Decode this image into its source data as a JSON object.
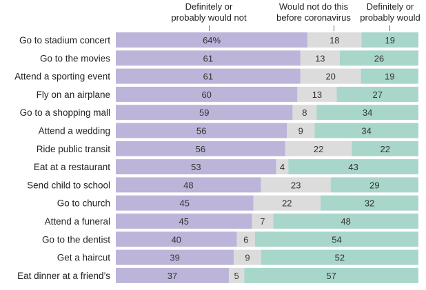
{
  "legend": {
    "would_not": "Definitely or probably would not",
    "would_not_line1": "Definitely or",
    "would_not_line2": "probably would not",
    "not_before": "Would not do this before coronavirus",
    "not_before_line1": "Would not do this",
    "not_before_line2": "before coronavirus",
    "would": "Definitely or probably would",
    "would_line1": "Definitely or",
    "would_line2": "probably would"
  },
  "colors": {
    "would_not": "#bcb5d9",
    "not_before": "#dcdcdc",
    "would": "#a8d6cb"
  },
  "chart_data": {
    "type": "bar",
    "orientation": "horizontal",
    "stacked": true,
    "categories": [
      "Go to stadium concert",
      "Go to the movies",
      "Attend a sporting event",
      "Fly on an airplane",
      "Go to a shopping mall",
      "Attend a wedding",
      "Ride public transit",
      "Eat at a restaurant",
      "Send child to school",
      "Go to church",
      "Attend a funeral",
      "Go to the dentist",
      "Get a haircut",
      "Eat dinner at a friend’s"
    ],
    "series": [
      {
        "name": "Definitely or probably would not",
        "values": [
          64,
          61,
          61,
          60,
          59,
          56,
          56,
          53,
          48,
          45,
          45,
          40,
          39,
          37
        ]
      },
      {
        "name": "Would not do this before coronavirus",
        "values": [
          18,
          13,
          20,
          13,
          8,
          9,
          22,
          4,
          23,
          22,
          7,
          6,
          9,
          5
        ]
      },
      {
        "name": "Definitely or probably would",
        "values": [
          19,
          26,
          19,
          27,
          34,
          34,
          22,
          43,
          29,
          32,
          48,
          54,
          52,
          57
        ]
      }
    ],
    "value_labels": [
      [
        "64%",
        "18",
        "19"
      ],
      [
        "61",
        "13",
        "26"
      ],
      [
        "61",
        "20",
        "19"
      ],
      [
        "60",
        "13",
        "27"
      ],
      [
        "59",
        "8",
        "34"
      ],
      [
        "56",
        "9",
        "34"
      ],
      [
        "56",
        "22",
        "22"
      ],
      [
        "53",
        "4",
        "43"
      ],
      [
        "48",
        "23",
        "29"
      ],
      [
        "45",
        "22",
        "32"
      ],
      [
        "45",
        "7",
        "48"
      ],
      [
        "40",
        "6",
        "54"
      ],
      [
        "39",
        "9",
        "52"
      ],
      [
        "37",
        "5",
        "57"
      ]
    ],
    "legend_position": "top",
    "grid": false
  }
}
